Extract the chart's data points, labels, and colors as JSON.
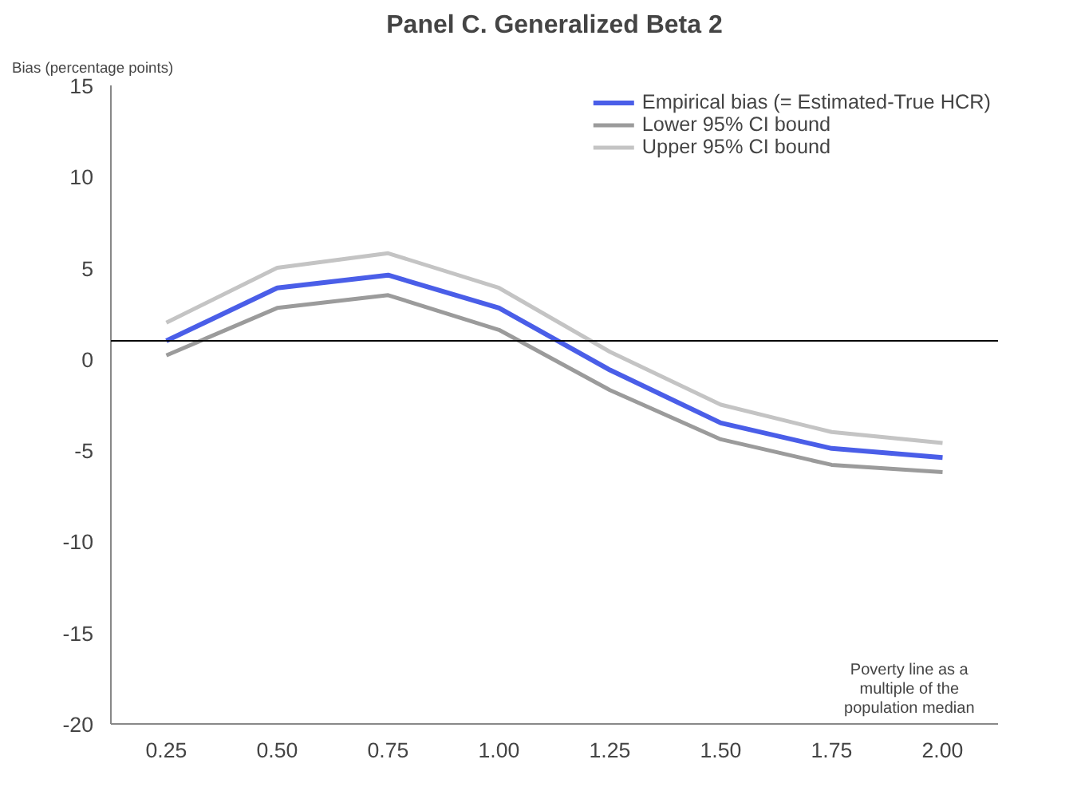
{
  "chart_data": {
    "type": "line",
    "title": "Panel C. Generalized Beta 2",
    "ylabel": "Bias (percentage points)",
    "xlabel": "Poverty line as a multiple of the population median",
    "categories": [
      "0.25",
      "0.50",
      "0.75",
      "1.00",
      "1.25",
      "1.50",
      "1.75",
      "2.00"
    ],
    "series": [
      {
        "name": "Empirical bias (= Estimated-True HCR)",
        "color": "#4a5ee8",
        "values": [
          1.0,
          3.9,
          4.6,
          2.8,
          -0.6,
          -3.5,
          -4.9,
          -5.4
        ]
      },
      {
        "name": "Lower 95% CI bound",
        "color": "#9b9b9b",
        "values": [
          0.2,
          2.8,
          3.5,
          1.6,
          -1.7,
          -4.4,
          -5.8,
          -6.2
        ]
      },
      {
        "name": "Upper 95% CI bound",
        "color": "#c4c4c4",
        "values": [
          2.0,
          5.0,
          5.8,
          3.9,
          0.4,
          -2.5,
          -4.0,
          -4.6
        ]
      }
    ],
    "ylim": [
      -20,
      15
    ],
    "yticks": [
      -20,
      -15,
      -10,
      -5,
      0,
      5,
      10,
      15
    ],
    "ref_lines": [
      {
        "axis": "y",
        "value": 1,
        "color": "#000000"
      }
    ],
    "grid": false,
    "legend": "top right",
    "marker": "none",
    "line_style": "solid"
  }
}
